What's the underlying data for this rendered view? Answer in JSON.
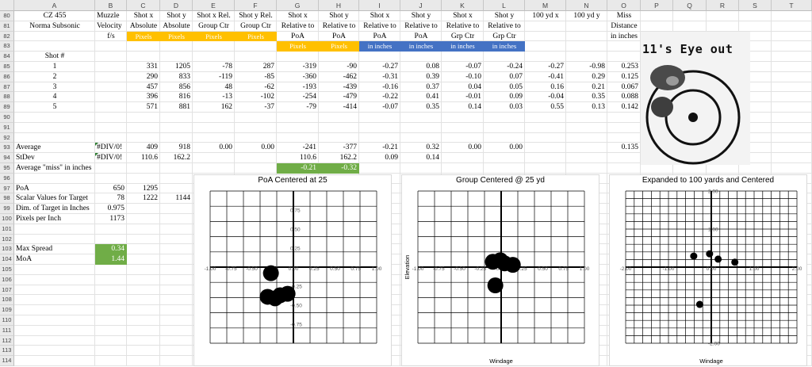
{
  "columns": [
    "A",
    "B",
    "C",
    "D",
    "E",
    "F",
    "G",
    "H",
    "I",
    "J",
    "K",
    "L",
    "M",
    "N",
    "O",
    "P",
    "Q",
    "R",
    "S",
    "T"
  ],
  "rows": [
    "80",
    "81",
    "82",
    "83",
    "84",
    "85",
    "86",
    "87",
    "88",
    "89",
    "90",
    "91",
    "92",
    "93",
    "94",
    "95",
    "96",
    "97",
    "98",
    "99",
    "100",
    "101",
    "102",
    "103",
    "104",
    "105",
    "106",
    "107",
    "108",
    "109",
    "110",
    "111",
    "112",
    "113",
    "114"
  ],
  "header_block": {
    "a80": "CZ 455",
    "a81": "Norma Subsonic",
    "b80": "Muzzle",
    "b81": "Velocity",
    "b82": "f/s",
    "c80": "Shot x",
    "c81": "Absolute",
    "c82": "Pixels",
    "d80": "Shot y",
    "d81": "Absolute",
    "d82": "Pixels",
    "e80": "Shot x Rel.",
    "e81": "Group Ctr",
    "e82": "Pixels",
    "f80": "Shot y Rel.",
    "f81": "Group Ctr",
    "f82": "Pixels",
    "g80": "Shot x",
    "g81": "Relative to",
    "g82": "PoA",
    "g83": "Pixels",
    "h80": "Shot y",
    "h81": "Relative to",
    "h82": "PoA",
    "h83": "Pixels",
    "i80": "Shot x",
    "i81": "Relative to",
    "i82": "PoA",
    "i83": "in inches",
    "j80": "Shot y",
    "j81": "Relative to",
    "j82": "PoA",
    "j83": "in inches",
    "k80": "Shot x",
    "k81": "Relative to",
    "k82": "Grp Ctr",
    "k83": "in inches",
    "l80": "Shot y",
    "l81": "Relative to",
    "l82": "Grp Ctr",
    "l83": "in inches",
    "m80": "100 yd x",
    "n80": "100 yd y",
    "o80": "Miss",
    "o81": "Distance",
    "o82": "in inches",
    "a84": "Shot #"
  },
  "shots": [
    [
      "1",
      "331",
      "1205",
      "-78",
      "287",
      "-319",
      "-90",
      "-0.27",
      "0.08",
      "-0.07",
      "-0.24",
      "-0.27",
      "-0.98",
      "0.253"
    ],
    [
      "2",
      "290",
      "833",
      "-119",
      "-85",
      "-360",
      "-462",
      "-0.31",
      "0.39",
      "-0.10",
      "0.07",
      "-0.41",
      "0.29",
      "0.125"
    ],
    [
      "3",
      "457",
      "856",
      "48",
      "-62",
      "-193",
      "-439",
      "-0.16",
      "0.37",
      "0.04",
      "0.05",
      "0.16",
      "0.21",
      "0.067"
    ],
    [
      "4",
      "396",
      "816",
      "-13",
      "-102",
      "-254",
      "-479",
      "-0.22",
      "0.41",
      "-0.01",
      "0.09",
      "-0.04",
      "0.35",
      "0.088"
    ],
    [
      "5",
      "571",
      "881",
      "162",
      "-37",
      "-79",
      "-414",
      "-0.07",
      "0.35",
      "0.14",
      "0.03",
      "0.55",
      "0.13",
      "0.142"
    ]
  ],
  "summary": {
    "avg_label": "Average",
    "avg_b": "#DIV/0!",
    "avg_c": "409",
    "avg_d": "918",
    "avg_e": "0.00",
    "avg_f": "0.00",
    "avg_g": "-241",
    "avg_h": "-377",
    "avg_i": "-0.21",
    "avg_j": "0.32",
    "avg_k": "0.00",
    "avg_l": "0.00",
    "avg_o": "0.135",
    "sd_label": "StDev",
    "sd_b": "#DIV/0!",
    "sd_c": "110.6",
    "sd_d": "162.2",
    "sd_g": "110.6",
    "sd_h": "162.2",
    "sd_i": "0.09",
    "sd_j": "0.14",
    "miss_label": "Average \"miss\" in inches",
    "miss_g": "-0.21",
    "miss_h": "-0.32",
    "poa_label": "PoA",
    "poa_b": "650",
    "poa_c": "1295",
    "scalar_label": "Scalar Values for Target",
    "scalar_b": "78",
    "scalar_c": "1222",
    "scalar_d": "1144",
    "dim_label": "Dim. of Target in Inches",
    "dim_b": "0.975",
    "ppi_label": "Pixels per Inch",
    "ppi_b": "1173",
    "maxspread_label": "Max Spread",
    "maxspread_b": "0.34",
    "moa_label": "MoA",
    "moa_b": "1.44"
  },
  "target_image": {
    "caption": "11's Eye out"
  },
  "chart_data": [
    {
      "type": "scatter",
      "title": "PoA Centered at 25",
      "xlabel": "",
      "ylabel": "",
      "xlim": [
        -1.0,
        1.0
      ],
      "ylim": [
        -1.0,
        1.0
      ],
      "x_ticks": [
        "-1.00",
        "-0.75",
        "-0.50",
        "-0.25",
        "0.00",
        "0.25",
        "0.50",
        "0.75",
        "1.00"
      ],
      "y_ticks": [
        "0.75",
        "0.50",
        "0.25",
        "-0.25",
        "-0.50",
        "-0.75"
      ],
      "x": [
        -0.27,
        -0.31,
        -0.16,
        -0.22,
        -0.07
      ],
      "y": [
        -0.08,
        -0.39,
        -0.37,
        -0.41,
        -0.35
      ]
    },
    {
      "type": "scatter",
      "title": "Group Centered @ 25 yd",
      "xlabel": "Windage",
      "ylabel": "Elevation",
      "xlim": [
        -1.0,
        1.0
      ],
      "ylim": [
        -1.0,
        1.0
      ],
      "x_ticks": [
        "-1.00",
        "-0.75",
        "-0.50",
        "-0.25",
        "0.00",
        "0.25",
        "0.50",
        "0.75",
        "1.00"
      ],
      "x": [
        -0.07,
        -0.1,
        0.04,
        -0.01,
        0.14
      ],
      "y": [
        -0.24,
        0.07,
        0.05,
        0.09,
        0.03
      ]
    },
    {
      "type": "scatter",
      "title": "Expanded to 100 yards and Centered",
      "xlabel": "Windage",
      "ylabel": "",
      "xlim": [
        -2.0,
        2.0
      ],
      "ylim": [
        -2.0,
        2.0
      ],
      "x_ticks": [
        "-2.00",
        "-1.00",
        "0.00",
        "1.00",
        "2.00"
      ],
      "y_ticks": [
        "2.00",
        "1.00",
        "-2.00"
      ],
      "x": [
        -0.27,
        -0.41,
        0.16,
        -0.04,
        0.55
      ],
      "y": [
        -0.98,
        0.29,
        0.21,
        0.35,
        0.13
      ]
    }
  ],
  "colors": {
    "yellow": "#ffc000",
    "blue": "#4472c4",
    "green": "#70ad47"
  }
}
